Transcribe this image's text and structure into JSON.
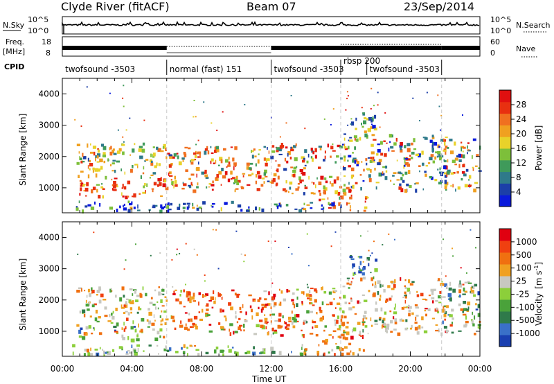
{
  "header": {
    "station": "Clyde River (fitACF)",
    "beam": "Beam 07",
    "date": "23/Sep/2014"
  },
  "side_labels": {
    "nsky": "N.Sky",
    "freq": "Freq.",
    "freq_unit": "[MHz]",
    "cpid": "CPID",
    "nsearch": "N.Search",
    "nave": "Nave"
  },
  "small_axes": {
    "noise_left_ticks": [
      "10^5",
      "10^0"
    ],
    "noise_right_ticks": [
      "10^5",
      "10^0"
    ],
    "freq_left_ticks": [
      "18",
      "8"
    ],
    "freq_right_ticks": [
      "60",
      "0"
    ]
  },
  "cpid_segments": [
    {
      "label": "twofsound -3503",
      "start_h": 0,
      "end_h": 6
    },
    {
      "label": "normal (fast) 151",
      "start_h": 6,
      "end_h": 12
    },
    {
      "label": "twofsound -3503",
      "start_h": 12,
      "end_h": 16
    },
    {
      "label": "rbsp 200",
      "start_h": 16,
      "end_h": 17.5
    },
    {
      "label": "twofsound -3503",
      "start_h": 17.5,
      "end_h": 22
    }
  ],
  "chart_data": [
    {
      "type": "heatmap",
      "panel": "power",
      "ylabel": "Slant Range [km]",
      "xlabel": "Time UT",
      "xlim_hours": [
        0,
        24
      ],
      "ylim_km": [
        200,
        4500
      ],
      "yticks": [
        "1000",
        "2000",
        "3000",
        "4000"
      ],
      "xticks": [
        "00:00",
        "04:00",
        "08:00",
        "12:00",
        "16:00",
        "20:00",
        "00:00"
      ],
      "colorbar": {
        "label": "Power [dB]",
        "ticks": [
          "4",
          "8",
          "12",
          "16",
          "20",
          "24",
          "28"
        ],
        "colors": [
          "#0a1adc",
          "#1c3fa8",
          "#2f7a8a",
          "#3f9a5a",
          "#7dbf3a",
          "#e8d22a",
          "#f0a020",
          "#f07020",
          "#e83010",
          "#e01010"
        ]
      }
    },
    {
      "type": "heatmap",
      "panel": "velocity",
      "ylabel": "Slant Range [km]",
      "xlabel": "Time UT",
      "xlim_hours": [
        0,
        24
      ],
      "ylim_km": [
        200,
        4500
      ],
      "yticks": [
        "1000",
        "2000",
        "3000",
        "4000"
      ],
      "xticks": [
        "00:00",
        "04:00",
        "08:00",
        "12:00",
        "16:00",
        "20:00",
        "00:00"
      ],
      "colorbar": {
        "label": "Velocity",
        "unit": "[m s",
        "unit_exp": "-1",
        "unit_close": "]",
        "ticks": [
          "1000",
          "500",
          "100",
          "25",
          "-25",
          "-100",
          "-500",
          "-1000"
        ],
        "colors": [
          "#1a3fb0",
          "#3a70c8",
          "#2f7a4a",
          "#4aa23a",
          "#8ccf3a",
          "#c8c8c0",
          "#f0a020",
          "#f07010",
          "#f04010",
          "#e00010"
        ]
      }
    }
  ]
}
